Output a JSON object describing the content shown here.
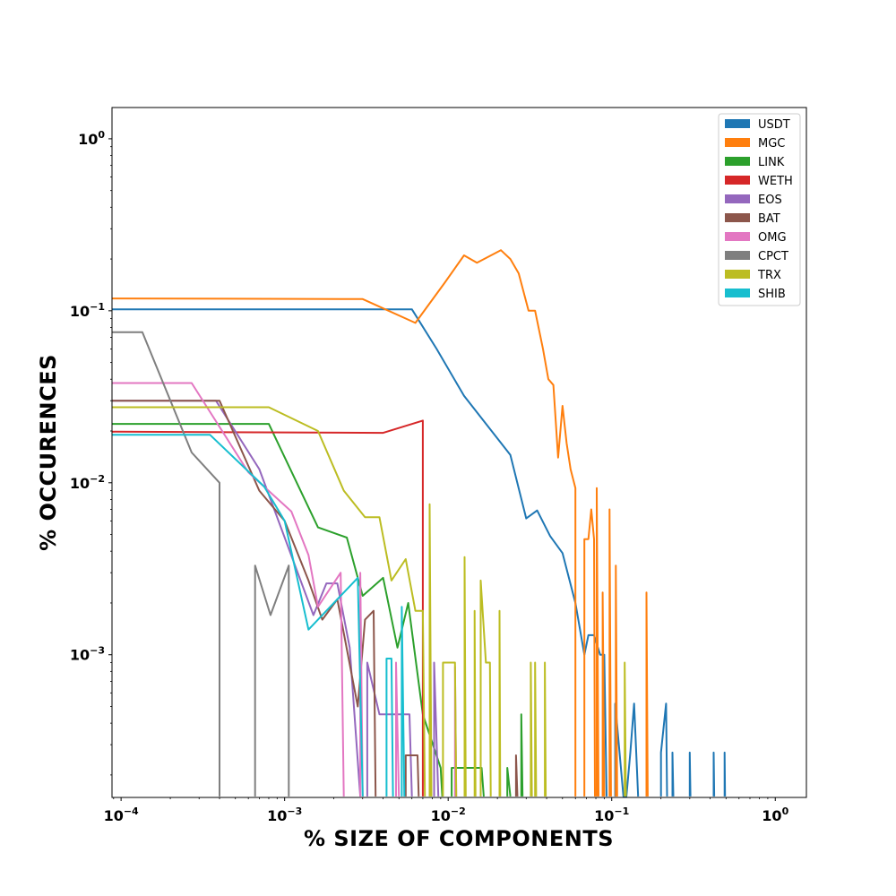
{
  "chart_data": {
    "type": "line",
    "xlabel": "% SIZE OF COMPONENTS",
    "ylabel": "% OCCURENCES",
    "xscale": "log",
    "yscale": "log",
    "xlim": [
      8.8e-05,
      1.55
    ],
    "ylim": [
      0.000148,
      1.52
    ],
    "grid": false,
    "legend_position": "upper-right",
    "x_ticks": [
      {
        "value": 0.0001,
        "base": "10",
        "exp": "−4"
      },
      {
        "value": 0.001,
        "base": "10",
        "exp": "−3"
      },
      {
        "value": 0.01,
        "base": "10",
        "exp": "−2"
      },
      {
        "value": 0.1,
        "base": "10",
        "exp": "−1"
      },
      {
        "value": 1,
        "base": "10",
        "exp": "0"
      }
    ],
    "y_ticks": [
      {
        "value": 0.001,
        "base": "10",
        "exp": "−3"
      },
      {
        "value": 0.01,
        "base": "10",
        "exp": "−2"
      },
      {
        "value": 0.1,
        "base": "10",
        "exp": "−1"
      },
      {
        "value": 1,
        "base": "10",
        "exp": "0"
      }
    ],
    "series": [
      {
        "name": "USDT",
        "color": "#1f77b4",
        "points": [
          [
            8.8e-05,
            0.102
          ],
          [
            0.006,
            0.102
          ],
          [
            0.0085,
            0.06
          ],
          [
            0.0125,
            0.032
          ],
          [
            0.024,
            0.0145
          ],
          [
            0.03,
            0.0062
          ],
          [
            0.035,
            0.0069
          ],
          [
            0.042,
            0.0049
          ],
          [
            0.05,
            0.0039
          ],
          [
            0.06,
            0.002
          ],
          [
            0.068,
            0.001
          ],
          [
            0.072,
            0.0013
          ],
          [
            0.078,
            0.0013
          ],
          [
            0.085,
            0.001
          ],
          [
            0.09,
            0.001
          ],
          [
            0.093,
            0.00015
          ],
          null,
          [
            0.105,
            0.00015
          ],
          [
            0.105,
            0.00052
          ],
          [
            0.118,
            0.00015
          ],
          [
            0.123,
            0.00015
          ],
          [
            0.13,
            0.00027
          ],
          [
            0.137,
            0.00052
          ],
          [
            0.145,
            0.00015
          ],
          null,
          [
            0.2,
            0.00015
          ],
          [
            0.2,
            0.00027
          ],
          [
            0.215,
            0.00052
          ],
          [
            0.218,
            0.00015
          ],
          null,
          [
            0.235,
            0.00015
          ],
          [
            0.235,
            0.00027
          ],
          [
            0.238,
            0.00015
          ],
          null,
          [
            0.3,
            0.00015
          ],
          [
            0.3,
            0.00027
          ],
          [
            0.303,
            0.00015
          ],
          null,
          [
            0.42,
            0.00015
          ],
          [
            0.42,
            0.00027
          ],
          [
            0.423,
            0.00015
          ],
          null,
          [
            0.49,
            0.00015
          ],
          [
            0.49,
            0.00027
          ],
          [
            0.493,
            0.00015
          ]
        ]
      },
      {
        "name": "MGC",
        "color": "#ff7f0e",
        "points": [
          [
            8.8e-05,
            0.118
          ],
          [
            0.003,
            0.117
          ],
          [
            0.0063,
            0.085
          ],
          [
            0.0095,
            0.145
          ],
          [
            0.0125,
            0.21
          ],
          [
            0.015,
            0.19
          ],
          [
            0.021,
            0.225
          ],
          [
            0.024,
            0.2
          ],
          [
            0.027,
            0.165
          ],
          [
            0.031,
            0.1
          ],
          [
            0.034,
            0.1
          ],
          [
            0.038,
            0.06
          ],
          [
            0.041,
            0.04
          ],
          [
            0.044,
            0.037
          ],
          [
            0.047,
            0.014
          ],
          [
            0.05,
            0.028
          ],
          [
            0.053,
            0.017
          ],
          [
            0.056,
            0.012
          ],
          [
            0.06,
            0.0093
          ],
          [
            0.06,
            0.00015
          ],
          null,
          [
            0.068,
            0.00015
          ],
          [
            0.068,
            0.0047
          ],
          [
            0.072,
            0.0047
          ],
          [
            0.075,
            0.007
          ],
          [
            0.078,
            0.0047
          ],
          [
            0.079,
            0.00015
          ],
          null,
          [
            0.081,
            0.00015
          ],
          [
            0.081,
            0.0093
          ],
          [
            0.083,
            0.00015
          ],
          null,
          [
            0.088,
            0.00015
          ],
          [
            0.088,
            0.0023
          ],
          [
            0.09,
            0.00015
          ],
          null,
          [
            0.097,
            0.00015
          ],
          [
            0.097,
            0.007
          ],
          [
            0.099,
            0.00015
          ],
          null,
          [
            0.106,
            0.00015
          ],
          [
            0.106,
            0.0033
          ],
          [
            0.108,
            0.00015
          ],
          null,
          [
            0.163,
            0.00015
          ],
          [
            0.163,
            0.0023
          ],
          [
            0.166,
            0.00015
          ]
        ]
      },
      {
        "name": "LINK",
        "color": "#2ca02c",
        "points": [
          [
            8.8e-05,
            0.022
          ],
          [
            0.0008,
            0.022
          ],
          [
            0.0016,
            0.0055
          ],
          [
            0.0024,
            0.0048
          ],
          [
            0.003,
            0.0022
          ],
          [
            0.004,
            0.0028
          ],
          [
            0.0049,
            0.0011
          ],
          [
            0.0057,
            0.002
          ],
          [
            0.007,
            0.00045
          ],
          [
            0.009,
            0.00022
          ],
          [
            0.0092,
            0.00015
          ],
          null,
          [
            0.0105,
            0.00015
          ],
          [
            0.0105,
            0.00022
          ],
          [
            0.012,
            0.00022
          ],
          [
            0.016,
            0.00022
          ],
          [
            0.0165,
            0.00015
          ],
          null,
          [
            0.023,
            0.00015
          ],
          [
            0.023,
            0.00022
          ],
          [
            0.024,
            0.00015
          ],
          null,
          [
            0.028,
            0.00015
          ],
          [
            0.028,
            0.00045
          ],
          [
            0.0285,
            0.00015
          ]
        ]
      },
      {
        "name": "WETH",
        "color": "#d62728",
        "points": [
          [
            8.8e-05,
            0.0198
          ],
          [
            0.004,
            0.0195
          ],
          [
            0.007,
            0.023
          ],
          [
            0.007,
            0.00015
          ]
        ]
      },
      {
        "name": "EOS",
        "color": "#9467bd",
        "points": [
          [
            8.8e-05,
            0.03
          ],
          [
            0.00038,
            0.03
          ],
          [
            0.0007,
            0.012
          ],
          [
            0.0015,
            0.0017
          ],
          [
            0.0018,
            0.0026
          ],
          [
            0.0021,
            0.0026
          ],
          [
            0.0025,
            0.0011
          ],
          [
            0.0029,
            0.00015
          ],
          null,
          [
            0.0032,
            0.00015
          ],
          [
            0.0032,
            0.0009
          ],
          [
            0.0038,
            0.00045
          ],
          [
            0.0045,
            0.00045
          ],
          [
            0.0058,
            0.00045
          ],
          [
            0.006,
            0.00015
          ],
          null,
          [
            0.0082,
            0.00015
          ],
          [
            0.0082,
            0.0009
          ],
          [
            0.0087,
            0.00015
          ]
        ]
      },
      {
        "name": "BAT",
        "color": "#8c564b",
        "points": [
          [
            8.8e-05,
            0.03
          ],
          [
            0.0004,
            0.03
          ],
          [
            0.0007,
            0.009
          ],
          [
            0.001,
            0.006
          ],
          [
            0.0014,
            0.0027
          ],
          [
            0.0017,
            0.0016
          ],
          [
            0.0021,
            0.0021
          ],
          [
            0.0028,
            0.0005
          ],
          [
            0.0031,
            0.0016
          ],
          [
            0.0035,
            0.0018
          ],
          [
            0.0036,
            0.00015
          ],
          null,
          [
            0.0055,
            0.00015
          ],
          [
            0.0055,
            0.00026
          ],
          [
            0.0065,
            0.00026
          ],
          [
            0.0066,
            0.00015
          ],
          null,
          [
            0.026,
            0.00015
          ],
          [
            0.026,
            0.00026
          ],
          [
            0.0265,
            0.00015
          ]
        ]
      },
      {
        "name": "OMG",
        "color": "#e377c2",
        "points": [
          [
            8.8e-05,
            0.038
          ],
          [
            0.00027,
            0.038
          ],
          [
            0.0006,
            0.0115
          ],
          [
            0.0011,
            0.0068
          ],
          [
            0.0014,
            0.0038
          ],
          [
            0.0016,
            0.0019
          ],
          [
            0.0022,
            0.003
          ],
          [
            0.0023,
            0.00015
          ],
          null,
          [
            0.0029,
            0.00015
          ],
          [
            0.0029,
            0.003
          ],
          [
            0.003,
            0.00015
          ],
          null,
          [
            0.0048,
            0.00015
          ],
          [
            0.0048,
            0.0009
          ],
          [
            0.005,
            0.00015
          ],
          null,
          [
            0.011,
            0.00015
          ],
          [
            0.011,
            0.00085
          ],
          [
            0.0112,
            0.00015
          ]
        ]
      },
      {
        "name": "CPCT",
        "color": "#7f7f7f",
        "points": [
          [
            8.8e-05,
            0.075
          ],
          [
            0.000135,
            0.075
          ],
          [
            0.00027,
            0.015
          ],
          [
            0.0004,
            0.01
          ],
          [
            0.0004,
            0.00015
          ],
          null,
          [
            0.00066,
            0.00015
          ],
          [
            0.00066,
            0.0033
          ],
          [
            0.00082,
            0.0017
          ],
          [
            0.00106,
            0.0033
          ],
          [
            0.00106,
            0.00015
          ]
        ]
      },
      {
        "name": "TRX",
        "color": "#bcbd22",
        "points": [
          [
            8.8e-05,
            0.0275
          ],
          [
            0.0008,
            0.0275
          ],
          [
            0.0016,
            0.02
          ],
          [
            0.0023,
            0.009
          ],
          [
            0.0031,
            0.0063
          ],
          [
            0.0038,
            0.0063
          ],
          [
            0.0045,
            0.0027
          ],
          [
            0.0055,
            0.0036
          ],
          [
            0.0063,
            0.0018
          ],
          [
            0.007,
            0.0018
          ],
          [
            0.0072,
            0.00015
          ],
          null,
          [
            0.0077,
            0.00015
          ],
          [
            0.0077,
            0.0075
          ],
          [
            0.0079,
            0.00015
          ],
          null,
          [
            0.0093,
            0.00015
          ],
          [
            0.0093,
            0.0009
          ],
          [
            0.011,
            0.0009
          ],
          [
            0.0112,
            0.00015
          ],
          null,
          [
            0.0126,
            0.00015
          ],
          [
            0.0126,
            0.0037
          ],
          [
            0.0128,
            0.00015
          ],
          null,
          [
            0.0145,
            0.00015
          ],
          [
            0.0145,
            0.0018
          ],
          [
            0.0147,
            0.00015
          ],
          null,
          [
            0.0158,
            0.00015
          ],
          [
            0.0158,
            0.0027
          ],
          [
            0.017,
            0.0009
          ],
          [
            0.018,
            0.0009
          ],
          [
            0.0182,
            0.00015
          ],
          null,
          [
            0.0206,
            0.00015
          ],
          [
            0.0206,
            0.0018
          ],
          [
            0.0208,
            0.00015
          ],
          null,
          [
            0.032,
            0.00015
          ],
          [
            0.032,
            0.0009
          ],
          [
            0.0325,
            0.00015
          ],
          null,
          [
            0.034,
            0.00015
          ],
          [
            0.034,
            0.0009
          ],
          [
            0.0345,
            0.00015
          ],
          null,
          [
            0.039,
            0.00015
          ],
          [
            0.039,
            0.0009
          ],
          [
            0.0395,
            0.00015
          ],
          null,
          [
            0.12,
            0.00015
          ],
          [
            0.12,
            0.0009
          ],
          [
            0.122,
            0.00015
          ]
        ]
      },
      {
        "name": "SHIB",
        "color": "#17becf",
        "points": [
          [
            8.8e-05,
            0.019
          ],
          [
            0.00035,
            0.019
          ],
          [
            0.00075,
            0.0095
          ],
          [
            0.001,
            0.006
          ],
          [
            0.0014,
            0.0014
          ],
          [
            0.0023,
            0.0023
          ],
          [
            0.0028,
            0.0028
          ],
          [
            0.003,
            0.00015
          ],
          null,
          [
            0.0042,
            0.00015
          ],
          [
            0.0042,
            0.00095
          ],
          [
            0.0045,
            0.00095
          ],
          [
            0.0046,
            0.00015
          ],
          null,
          [
            0.0052,
            0.00015
          ],
          [
            0.0052,
            0.0019
          ],
          [
            0.0054,
            0.00015
          ]
        ]
      }
    ]
  }
}
